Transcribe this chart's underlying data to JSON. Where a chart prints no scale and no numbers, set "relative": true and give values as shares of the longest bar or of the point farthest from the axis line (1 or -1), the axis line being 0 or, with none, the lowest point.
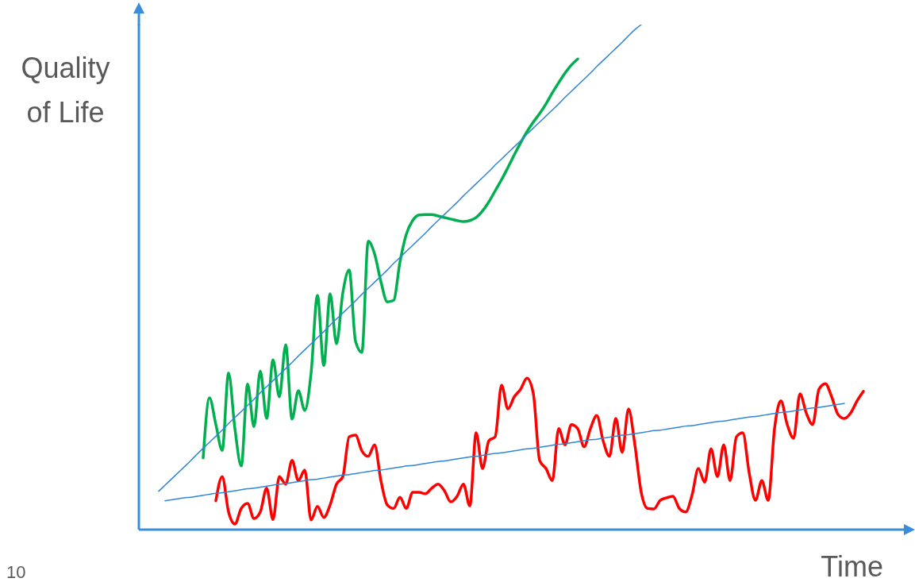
{
  "chart_data": {
    "type": "line",
    "xlabel": "Time",
    "ylabel": "Quality of Life",
    "annotations": [
      "10"
    ],
    "relative": true,
    "marker": "none",
    "categories": [
      null,
      null,
      null,
      null,
      null,
      null,
      null,
      null,
      null,
      null,
      null,
      null,
      null,
      null,
      null,
      null,
      null,
      null,
      null,
      null,
      null,
      null,
      null,
      null,
      null,
      null,
      null,
      null,
      null,
      null,
      null,
      null,
      null,
      null,
      null,
      null,
      null,
      null,
      null,
      null,
      null,
      null,
      null,
      null,
      null,
      null,
      null,
      null,
      null,
      null,
      null,
      null,
      null,
      null,
      null,
      null,
      null,
      null,
      null,
      null,
      null,
      null,
      null,
      null,
      null,
      null,
      null,
      null,
      null,
      null,
      null,
      null,
      null,
      null,
      null,
      null,
      null,
      null,
      null,
      null,
      null,
      null,
      null,
      null,
      null,
      null,
      null,
      null,
      null,
      null,
      null,
      null,
      null,
      null,
      null,
      null,
      null,
      null,
      null,
      null,
      null,
      null,
      null,
      null,
      null,
      null,
      null,
      null,
      null,
      null,
      null,
      null
    ],
    "series": [
      {
        "color": "#00b050",
        "values": [
          null,
          null,
          null,
          null,
          null,
          null,
          null,
          0.142,
          0.261,
          0.208,
          0.157,
          0.31,
          0.2,
          0.126,
          0.288,
          0.204,
          0.314,
          0.22,
          0.336,
          0.263,
          0.366,
          0.219,
          0.275,
          0.236,
          0.31,
          0.464,
          0.325,
          0.467,
          0.368,
          0.469,
          0.514,
          0.373,
          0.351,
          0.571,
          0.546,
          0.491,
          0.451,
          0.454,
          0.53,
          0.585,
          0.612,
          0.623,
          0.624,
          0.624,
          0.621,
          0.618,
          0.615,
          0.612,
          0.61,
          0.612,
          0.618,
          0.631,
          0.649,
          0.671,
          0.693,
          0.717,
          0.742,
          0.766,
          0.788,
          0.807,
          0.824,
          0.843,
          0.865,
          0.885,
          0.904,
          0.92,
          0.932,
          null,
          null,
          null,
          null,
          null,
          null,
          null,
          null,
          null,
          null,
          null,
          null,
          null,
          null,
          null,
          null,
          null,
          null,
          null,
          null,
          null,
          null,
          null,
          null,
          null,
          null,
          null,
          null,
          null,
          null,
          null,
          null,
          null,
          null,
          null,
          null,
          null,
          null,
          null,
          null,
          null,
          null,
          null,
          null,
          null
        ]
      },
      {
        "color": "#ff0000",
        "values": [
          null,
          null,
          null,
          null,
          null,
          null,
          null,
          null,
          null,
          0.057,
          0.105,
          0.035,
          0.011,
          0.042,
          0.052,
          0.022,
          0.035,
          0.082,
          0.02,
          0.105,
          0.09,
          0.137,
          0.097,
          0.118,
          0.019,
          0.046,
          0.024,
          0.049,
          0.09,
          0.105,
          0.184,
          0.187,
          0.156,
          0.145,
          0.168,
          0.097,
          0.049,
          0.042,
          0.064,
          0.042,
          0.074,
          0.074,
          0.071,
          0.082,
          0.09,
          0.077,
          0.055,
          0.066,
          0.09,
          0.047,
          0.192,
          0.121,
          0.176,
          0.184,
          0.286,
          0.239,
          0.263,
          0.278,
          0.3,
          0.27,
          0.137,
          0.121,
          0.097,
          0.2,
          0.168,
          0.208,
          0.2,
          0.164,
          0.2,
          0.226,
          0.176,
          0.145,
          0.22,
          0.153,
          0.239,
          0.168,
          0.074,
          0.042,
          0.041,
          0.058,
          0.063,
          0.066,
          0.042,
          0.035,
          0.068,
          0.121,
          0.094,
          0.16,
          0.105,
          0.168,
          0.097,
          0.184,
          0.192,
          0.113,
          0.058,
          0.097,
          0.058,
          0.2,
          0.255,
          0.208,
          0.181,
          0.269,
          0.231,
          0.208,
          0.278,
          0.289,
          0.263,
          0.228,
          0.22,
          0.231,
          0.255,
          0.274
        ]
      },
      {
        "color": "#2f86d6",
        "values": [
          0.076,
          0.088,
          0.1,
          0.112,
          0.124,
          0.136,
          0.149,
          0.161,
          0.173,
          0.185,
          0.197,
          0.21,
          0.222,
          0.234,
          0.246,
          0.258,
          0.271,
          0.283,
          0.295,
          0.307,
          0.319,
          0.331,
          0.344,
          0.356,
          0.368,
          0.38,
          0.392,
          0.405,
          0.417,
          0.429,
          0.441,
          0.453,
          0.466,
          0.478,
          0.49,
          0.502,
          0.514,
          0.527,
          0.539,
          0.551,
          0.563,
          0.575,
          0.587,
          0.6,
          0.612,
          0.624,
          0.636,
          0.648,
          0.661,
          0.673,
          0.685,
          0.697,
          0.709,
          0.722,
          0.734,
          0.746,
          0.758,
          0.77,
          0.783,
          0.795,
          0.807,
          0.819,
          0.831,
          0.843,
          0.856,
          0.868,
          0.88,
          0.892,
          0.904,
          0.917,
          0.929,
          0.941,
          0.953,
          0.965,
          0.978,
          0.99,
          1,
          null,
          null,
          null,
          null,
          null,
          null,
          null,
          null,
          null,
          null,
          null,
          null,
          null,
          null,
          null,
          null,
          null,
          null,
          null,
          null,
          null,
          null,
          null,
          null,
          null,
          null,
          null,
          null,
          null,
          null,
          null,
          null,
          null,
          null,
          null
        ]
      },
      {
        "color": "#2f86d6",
        "values": [
          null,
          0.057,
          0.059,
          0.061,
          0.063,
          0.064,
          0.066,
          0.068,
          0.07,
          0.072,
          0.073,
          0.075,
          0.077,
          0.079,
          0.081,
          0.082,
          0.084,
          0.086,
          0.088,
          0.09,
          0.091,
          0.093,
          0.095,
          0.097,
          0.099,
          0.1,
          0.102,
          0.104,
          0.106,
          0.108,
          0.109,
          0.111,
          0.113,
          0.115,
          0.117,
          0.118,
          0.12,
          0.122,
          0.124,
          0.126,
          0.127,
          0.129,
          0.131,
          0.133,
          0.135,
          0.136,
          0.138,
          0.14,
          0.142,
          0.144,
          0.145,
          0.147,
          0.149,
          0.151,
          0.152,
          0.154,
          0.156,
          0.158,
          0.16,
          0.161,
          0.163,
          0.165,
          0.167,
          0.169,
          0.17,
          0.172,
          0.174,
          0.176,
          0.178,
          0.179,
          0.181,
          0.183,
          0.185,
          0.187,
          0.188,
          0.19,
          0.192,
          0.194,
          0.196,
          0.197,
          0.199,
          0.201,
          0.203,
          0.205,
          0.206,
          0.208,
          0.21,
          0.212,
          0.214,
          0.215,
          0.217,
          0.219,
          0.221,
          0.223,
          0.224,
          0.226,
          0.228,
          0.23,
          0.232,
          0.233,
          0.235,
          0.237,
          0.239,
          0.241,
          0.242,
          0.244,
          0.246,
          0.248,
          0.25,
          null,
          null,
          null
        ]
      }
    ]
  }
}
